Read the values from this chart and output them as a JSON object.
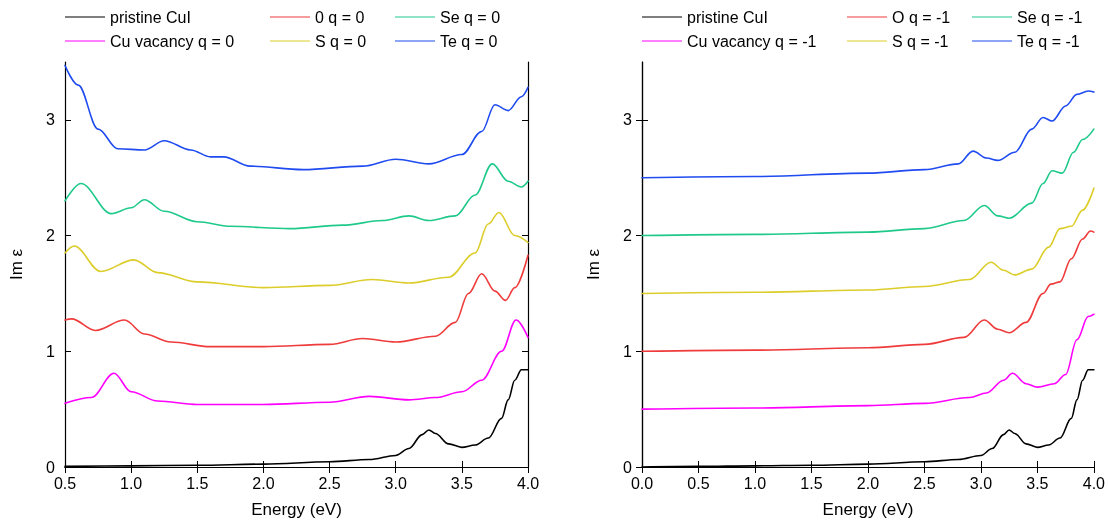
{
  "chart_data": [
    {
      "type": "line",
      "xlabel": "Energy (eV)",
      "ylabel": "Im ε",
      "legend": "top",
      "grid": false,
      "line_style": "solid",
      "marker": "none",
      "xlim": [
        0.5,
        4.0
      ],
      "ylim": [
        0,
        3.5
      ],
      "xticks": [
        {
          "value": 0.5,
          "label": "0.5"
        },
        {
          "value": 1,
          "label": "1.0"
        },
        {
          "value": 1.5,
          "label": "1.5"
        },
        {
          "value": 2,
          "label": "2.0"
        },
        {
          "value": 2.5,
          "label": "2.5"
        },
        {
          "value": 3,
          "label": "3.0"
        },
        {
          "value": 3.5,
          "label": "3.5"
        },
        {
          "value": 4,
          "label": "4.0"
        }
      ],
      "yticks": [
        0,
        1,
        2,
        3
      ],
      "series": [
        {
          "name": "pristine CuI",
          "color": "#000000",
          "x": [
            0.5,
            1.0,
            1.5,
            2.0,
            2.5,
            2.8,
            3.0,
            3.1,
            3.2,
            3.25,
            3.3,
            3.4,
            3.5,
            3.6,
            3.7,
            3.8,
            3.85,
            3.9,
            3.95,
            4.0
          ],
          "values": [
            0.005,
            0.01,
            0.015,
            0.025,
            0.045,
            0.065,
            0.1,
            0.16,
            0.28,
            0.32,
            0.29,
            0.2,
            0.17,
            0.19,
            0.25,
            0.42,
            0.58,
            0.75,
            0.84,
            0.84
          ]
        },
        {
          "name": "0 q = 0",
          "color": "#ef3b3b",
          "x": [
            0.5,
            0.55,
            0.73,
            0.95,
            1.1,
            1.3,
            1.6,
            2.0,
            2.5,
            2.75,
            3.0,
            3.3,
            3.45,
            3.55,
            3.65,
            3.75,
            3.83,
            3.9,
            4.0
          ],
          "values": [
            1.27,
            1.28,
            1.18,
            1.27,
            1.15,
            1.08,
            1.04,
            1.04,
            1.06,
            1.11,
            1.08,
            1.13,
            1.25,
            1.5,
            1.67,
            1.52,
            1.44,
            1.55,
            1.83
          ]
        },
        {
          "name": "Se q = 0",
          "color": "#1ec98a",
          "x": [
            0.5,
            0.62,
            0.85,
            1.0,
            1.1,
            1.25,
            1.5,
            1.75,
            2.2,
            2.6,
            2.9,
            3.1,
            3.25,
            3.45,
            3.6,
            3.73,
            3.85,
            3.95,
            4.0
          ],
          "values": [
            2.3,
            2.45,
            2.19,
            2.24,
            2.31,
            2.21,
            2.12,
            2.08,
            2.06,
            2.09,
            2.13,
            2.17,
            2.13,
            2.17,
            2.35,
            2.62,
            2.47,
            2.42,
            2.47
          ]
        },
        {
          "name": "Cu vacancy q = 0",
          "color": "#ff00ff",
          "x": [
            0.5,
            0.7,
            0.87,
            1.0,
            1.2,
            1.5,
            2.0,
            2.5,
            2.8,
            3.1,
            3.3,
            3.5,
            3.65,
            3.8,
            3.91,
            4.0
          ],
          "values": [
            0.55,
            0.6,
            0.81,
            0.65,
            0.57,
            0.54,
            0.54,
            0.56,
            0.61,
            0.58,
            0.6,
            0.65,
            0.75,
            1.0,
            1.27,
            1.12
          ]
        },
        {
          "name": "S q = 0",
          "color": "#dccd2a",
          "x": [
            0.5,
            0.57,
            0.77,
            1.02,
            1.2,
            1.5,
            2.0,
            2.5,
            2.82,
            3.1,
            3.4,
            3.6,
            3.7,
            3.78,
            3.9,
            4.0
          ],
          "values": [
            1.85,
            1.91,
            1.69,
            1.79,
            1.68,
            1.6,
            1.55,
            1.57,
            1.62,
            1.59,
            1.64,
            1.85,
            2.1,
            2.2,
            2.0,
            1.94
          ]
        },
        {
          "name": "Te q = 0",
          "color": "#1f4bf0",
          "x": [
            0.5,
            0.6,
            0.75,
            0.9,
            1.1,
            1.25,
            1.45,
            1.6,
            1.7,
            1.9,
            2.3,
            2.75,
            3.0,
            3.25,
            3.5,
            3.65,
            3.75,
            3.85,
            3.95,
            4.0
          ],
          "values": [
            3.47,
            3.3,
            2.92,
            2.75,
            2.74,
            2.82,
            2.74,
            2.68,
            2.68,
            2.6,
            2.57,
            2.6,
            2.66,
            2.62,
            2.7,
            2.9,
            3.13,
            3.08,
            3.2,
            3.28
          ]
        }
      ]
    },
    {
      "type": "line",
      "xlabel": "Energy (eV)",
      "ylabel": "Im ε",
      "legend": "top",
      "grid": false,
      "line_style": "solid",
      "marker": "none",
      "xlim": [
        0,
        4.0
      ],
      "ylim": [
        0,
        3.5
      ],
      "xticks": [
        {
          "value": 0,
          "label": "0.0"
        },
        {
          "value": 0.5,
          "label": "0.5"
        },
        {
          "value": 1,
          "label": "1.0"
        },
        {
          "value": 1.5,
          "label": "1.5"
        },
        {
          "value": 2,
          "label": "2.0"
        },
        {
          "value": 2.5,
          "label": "2.5"
        },
        {
          "value": 3,
          "label": "3.0"
        },
        {
          "value": 3.5,
          "label": "3.5"
        },
        {
          "value": 4,
          "label": "4.0"
        }
      ],
      "yticks": [
        0,
        1,
        2,
        3
      ],
      "series": [
        {
          "name": "pristine CuI",
          "color": "#000000",
          "x": [
            0,
            0.5,
            1.0,
            1.5,
            2.0,
            2.5,
            2.8,
            3.0,
            3.1,
            3.2,
            3.25,
            3.3,
            3.4,
            3.5,
            3.6,
            3.7,
            3.8,
            3.85,
            3.9,
            3.95,
            4.0
          ],
          "values": [
            0,
            0.005,
            0.01,
            0.015,
            0.025,
            0.045,
            0.065,
            0.1,
            0.16,
            0.28,
            0.32,
            0.29,
            0.2,
            0.17,
            0.19,
            0.25,
            0.42,
            0.58,
            0.75,
            0.84,
            0.84
          ]
        },
        {
          "name": "O q = -1",
          "color": "#ef3b3b",
          "x": [
            0,
            1,
            2,
            2.5,
            2.85,
            3.03,
            3.15,
            3.25,
            3.4,
            3.55,
            3.62,
            3.7,
            3.8,
            3.9,
            3.97,
            4.0
          ],
          "values": [
            1.0,
            1.01,
            1.03,
            1.06,
            1.12,
            1.27,
            1.19,
            1.16,
            1.25,
            1.5,
            1.58,
            1.6,
            1.8,
            1.97,
            2.04,
            2.03
          ]
        },
        {
          "name": "Se q = -1",
          "color": "#1ec98a",
          "x": [
            0,
            1,
            2,
            2.5,
            2.85,
            3.03,
            3.15,
            3.25,
            3.45,
            3.55,
            3.63,
            3.72,
            3.82,
            3.9,
            4.0
          ],
          "values": [
            2.0,
            2.01,
            2.03,
            2.06,
            2.13,
            2.26,
            2.17,
            2.15,
            2.28,
            2.45,
            2.56,
            2.54,
            2.72,
            2.83,
            2.92
          ]
        },
        {
          "name": "Cu vacancy q = -1",
          "color": "#ff00ff",
          "x": [
            0,
            1,
            2,
            2.5,
            2.9,
            3.05,
            3.2,
            3.28,
            3.4,
            3.5,
            3.65,
            3.75,
            3.85,
            3.95,
            4.0
          ],
          "values": [
            0.5,
            0.51,
            0.53,
            0.55,
            0.6,
            0.64,
            0.75,
            0.81,
            0.72,
            0.69,
            0.72,
            0.8,
            1.1,
            1.3,
            1.32
          ]
        },
        {
          "name": "S q = -1",
          "color": "#dccd2a",
          "x": [
            0,
            1,
            2,
            2.5,
            2.9,
            3.09,
            3.2,
            3.3,
            3.45,
            3.6,
            3.7,
            3.8,
            3.9,
            4.0
          ],
          "values": [
            1.5,
            1.51,
            1.53,
            1.56,
            1.62,
            1.77,
            1.7,
            1.66,
            1.71,
            1.9,
            2.06,
            2.08,
            2.22,
            2.41
          ]
        },
        {
          "name": "Te q = -1",
          "color": "#1f4bf0",
          "x": [
            0,
            1,
            2,
            2.5,
            2.8,
            2.93,
            3.05,
            3.15,
            3.3,
            3.45,
            3.55,
            3.63,
            3.75,
            3.85,
            3.95,
            4.0
          ],
          "values": [
            2.5,
            2.51,
            2.54,
            2.57,
            2.62,
            2.73,
            2.67,
            2.65,
            2.72,
            2.92,
            3.02,
            2.99,
            3.12,
            3.22,
            3.25,
            3.24
          ]
        }
      ]
    }
  ]
}
